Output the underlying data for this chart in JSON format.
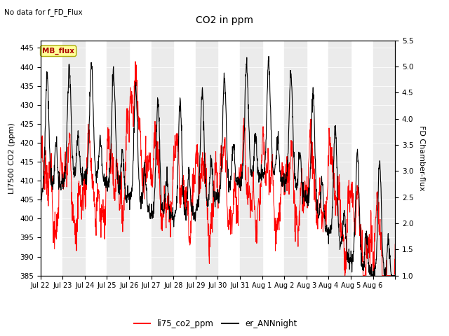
{
  "title": "CO2 in ppm",
  "subtitle": "No data for f_FD_Flux",
  "ylabel_left": "LI7500 CO2 (ppm)",
  "ylabel_right": "FD Chamber-flux",
  "ylim_left": [
    385,
    447
  ],
  "ylim_right": [
    1.0,
    5.5
  ],
  "yticks_left": [
    385,
    390,
    395,
    400,
    405,
    410,
    415,
    420,
    425,
    430,
    435,
    440,
    445
  ],
  "yticks_right": [
    1.0,
    1.5,
    2.0,
    2.5,
    3.0,
    3.5,
    4.0,
    4.5,
    5.0,
    5.5
  ],
  "xtick_labels": [
    "Jul 22",
    "Jul 23",
    "Jul 24",
    "Jul 25",
    "Jul 26",
    "Jul 27",
    "Jul 28",
    "Jul 29",
    "Jul 30",
    "Jul 31",
    "Aug 1",
    "Aug 2",
    "Aug 3",
    "Aug 4",
    "Aug 5",
    "Aug 6"
  ],
  "color_red": "#FF0000",
  "color_black": "#000000",
  "legend_label_red": "li75_co2_ppm",
  "legend_label_black": "er_ANNnight",
  "mb_flux_label": "MB_flux",
  "mb_flux_color": "#AA0000",
  "mb_flux_bg": "#FFFF99",
  "mb_flux_edge": "#AAAA00",
  "bg_band_color": "#EBEBEB",
  "n_days": 16
}
